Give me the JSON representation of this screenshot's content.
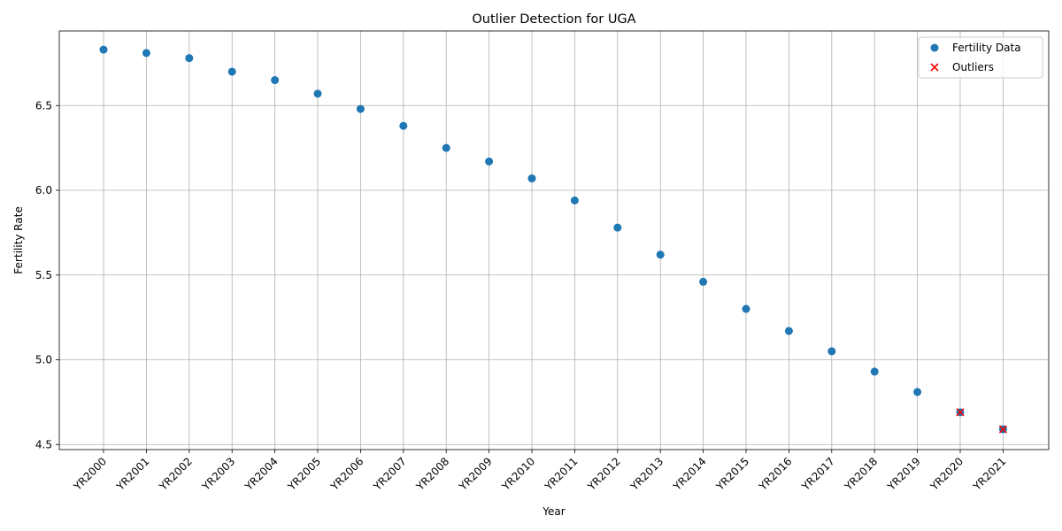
{
  "chart_data": {
    "type": "scatter",
    "title": "Outlier Detection for UGA",
    "xlabel": "Year",
    "ylabel": "Fertility Rate",
    "categories": [
      "YR2000",
      "YR2001",
      "YR2002",
      "YR2003",
      "YR2004",
      "YR2005",
      "YR2006",
      "YR2007",
      "YR2008",
      "YR2009",
      "YR2010",
      "YR2011",
      "YR2012",
      "YR2013",
      "YR2014",
      "YR2015",
      "YR2016",
      "YR2017",
      "YR2018",
      "YR2019",
      "YR2020",
      "YR2021"
    ],
    "ylim": [
      4.47,
      6.94
    ],
    "yticks": [
      "4.5",
      "5.0",
      "5.5",
      "6.0",
      "6.5"
    ],
    "grid": true,
    "legend_position": "top-right",
    "series": [
      {
        "name": "Fertility Data",
        "marker": "circle",
        "color": "#1f77b4",
        "x": [
          "YR2000",
          "YR2001",
          "YR2002",
          "YR2003",
          "YR2004",
          "YR2005",
          "YR2006",
          "YR2007",
          "YR2008",
          "YR2009",
          "YR2010",
          "YR2011",
          "YR2012",
          "YR2013",
          "YR2014",
          "YR2015",
          "YR2016",
          "YR2017",
          "YR2018",
          "YR2019",
          "YR2020",
          "YR2021"
        ],
        "values": [
          6.83,
          6.81,
          6.78,
          6.7,
          6.65,
          6.57,
          6.48,
          6.38,
          6.25,
          6.17,
          6.07,
          5.94,
          5.78,
          5.62,
          5.46,
          5.3,
          5.17,
          5.05,
          4.93,
          4.81,
          4.69,
          4.59
        ]
      },
      {
        "name": "Outliers",
        "marker": "x",
        "color": "#ff0000",
        "x": [
          "YR2020",
          "YR2021"
        ],
        "values": [
          4.69,
          4.59
        ]
      }
    ]
  }
}
